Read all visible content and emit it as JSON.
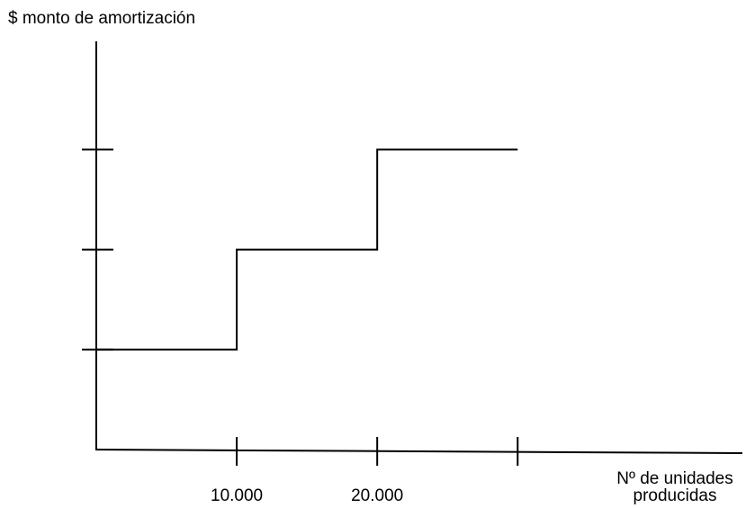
{
  "chart_data": {
    "type": "line",
    "title": "",
    "ylabel": "$ monto de amortización",
    "xlabel_lines": [
      "Nº de unidades",
      "producidas"
    ],
    "x_ticks": [
      10000,
      20000,
      30000
    ],
    "x_tick_labels": [
      "10.000",
      "20.000",
      ""
    ],
    "y_ticks": [
      1,
      2,
      3
    ],
    "y_tick_labels": [
      "",
      "",
      ""
    ],
    "xlim": [
      0,
      46000
    ],
    "ylim": [
      0,
      4.2
    ],
    "series": [
      {
        "x": [
          0,
          10000,
          10000,
          20000,
          20000,
          30000
        ],
        "y": [
          1,
          1,
          2,
          2,
          3,
          3
        ]
      }
    ],
    "grid": false,
    "legend": "none"
  },
  "colors": {
    "ink": "#000000",
    "background": "#ffffff"
  }
}
